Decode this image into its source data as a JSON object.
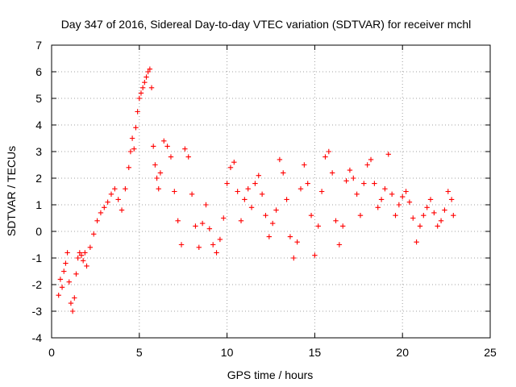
{
  "chart_data": {
    "type": "scatter",
    "title": "Day 347 of 2016, Sidereal Day-to-day VTEC variation (SDTVAR) for receiver mchl",
    "xlabel": "GPS time / hours",
    "ylabel": "SDTVAR / TECUs",
    "xlim": [
      0,
      25
    ],
    "ylim": [
      -4,
      7
    ],
    "xticks": [
      0,
      5,
      10,
      15,
      20,
      25
    ],
    "yticks": [
      -4,
      -3,
      -2,
      -1,
      0,
      1,
      2,
      3,
      4,
      5,
      6,
      7
    ],
    "grid": true,
    "marker": "+",
    "series": [
      {
        "name": "SDTVAR",
        "color": "#ff0000",
        "x": [
          0.4,
          0.5,
          0.6,
          0.7,
          0.8,
          0.9,
          1.0,
          1.1,
          1.2,
          1.3,
          1.4,
          1.5,
          1.6,
          1.7,
          1.8,
          1.9,
          2.0,
          2.2,
          2.4,
          2.6,
          2.8,
          3.0,
          3.2,
          3.4,
          3.6,
          3.8,
          4.0,
          4.2,
          4.4,
          4.5,
          4.6,
          4.7,
          4.8,
          4.9,
          5.0,
          5.1,
          5.2,
          5.3,
          5.4,
          5.5,
          5.6,
          5.7,
          5.8,
          5.9,
          6.0,
          6.1,
          6.2,
          6.4,
          6.6,
          6.8,
          7.0,
          7.2,
          7.4,
          7.6,
          7.8,
          8.0,
          8.2,
          8.4,
          8.6,
          8.8,
          9.0,
          9.2,
          9.4,
          9.6,
          9.8,
          10.0,
          10.2,
          10.4,
          10.6,
          10.8,
          11.0,
          11.2,
          11.4,
          11.6,
          11.8,
          12.0,
          12.2,
          12.4,
          12.6,
          12.8,
          13.0,
          13.2,
          13.4,
          13.6,
          13.8,
          14.0,
          14.2,
          14.4,
          14.6,
          14.8,
          15.0,
          15.2,
          15.4,
          15.6,
          15.8,
          16.0,
          16.2,
          16.4,
          16.6,
          16.8,
          17.0,
          17.2,
          17.4,
          17.6,
          17.8,
          18.0,
          18.2,
          18.4,
          18.6,
          18.8,
          19.0,
          19.2,
          19.4,
          19.6,
          19.8,
          20.0,
          20.2,
          20.4,
          20.6,
          20.8,
          21.0,
          21.2,
          21.4,
          21.6,
          21.8,
          22.0,
          22.2,
          22.4,
          22.6,
          22.8,
          22.9
        ],
        "y": [
          -2.4,
          -1.8,
          -2.1,
          -1.5,
          -1.2,
          -0.8,
          -1.9,
          -2.7,
          -3.0,
          -2.5,
          -1.6,
          -1.0,
          -0.8,
          -0.9,
          -1.1,
          -0.8,
          -1.3,
          -0.6,
          -0.1,
          0.4,
          0.7,
          0.9,
          1.1,
          1.4,
          1.6,
          1.2,
          0.8,
          1.6,
          2.4,
          3.0,
          3.5,
          3.1,
          3.9,
          4.5,
          5.0,
          5.2,
          5.4,
          5.6,
          5.8,
          6.0,
          6.1,
          5.4,
          3.2,
          2.5,
          2.0,
          1.6,
          2.2,
          3.4,
          3.2,
          2.8,
          1.5,
          0.4,
          -0.5,
          3.1,
          2.8,
          1.4,
          0.2,
          -0.6,
          0.3,
          1.0,
          0.1,
          -0.5,
          -0.8,
          -0.3,
          0.5,
          1.8,
          2.4,
          2.6,
          1.5,
          0.4,
          1.2,
          1.6,
          0.9,
          1.8,
          2.1,
          1.4,
          0.6,
          -0.2,
          0.3,
          0.8,
          2.7,
          2.2,
          1.2,
          -0.2,
          -1.0,
          -0.4,
          1.6,
          2.5,
          1.8,
          0.6,
          -0.9,
          0.2,
          1.5,
          2.8,
          3.0,
          2.2,
          0.4,
          -0.5,
          0.2,
          1.9,
          2.3,
          2.0,
          1.4,
          0.6,
          1.8,
          2.5,
          2.7,
          1.8,
          0.9,
          1.2,
          1.6,
          2.9,
          1.4,
          0.6,
          1.0,
          1.3,
          1.5,
          1.1,
          0.5,
          -0.4,
          0.2,
          0.6,
          0.9,
          1.2,
          0.7,
          0.2,
          0.4,
          0.8,
          1.5,
          1.2,
          0.6
        ]
      }
    ]
  }
}
